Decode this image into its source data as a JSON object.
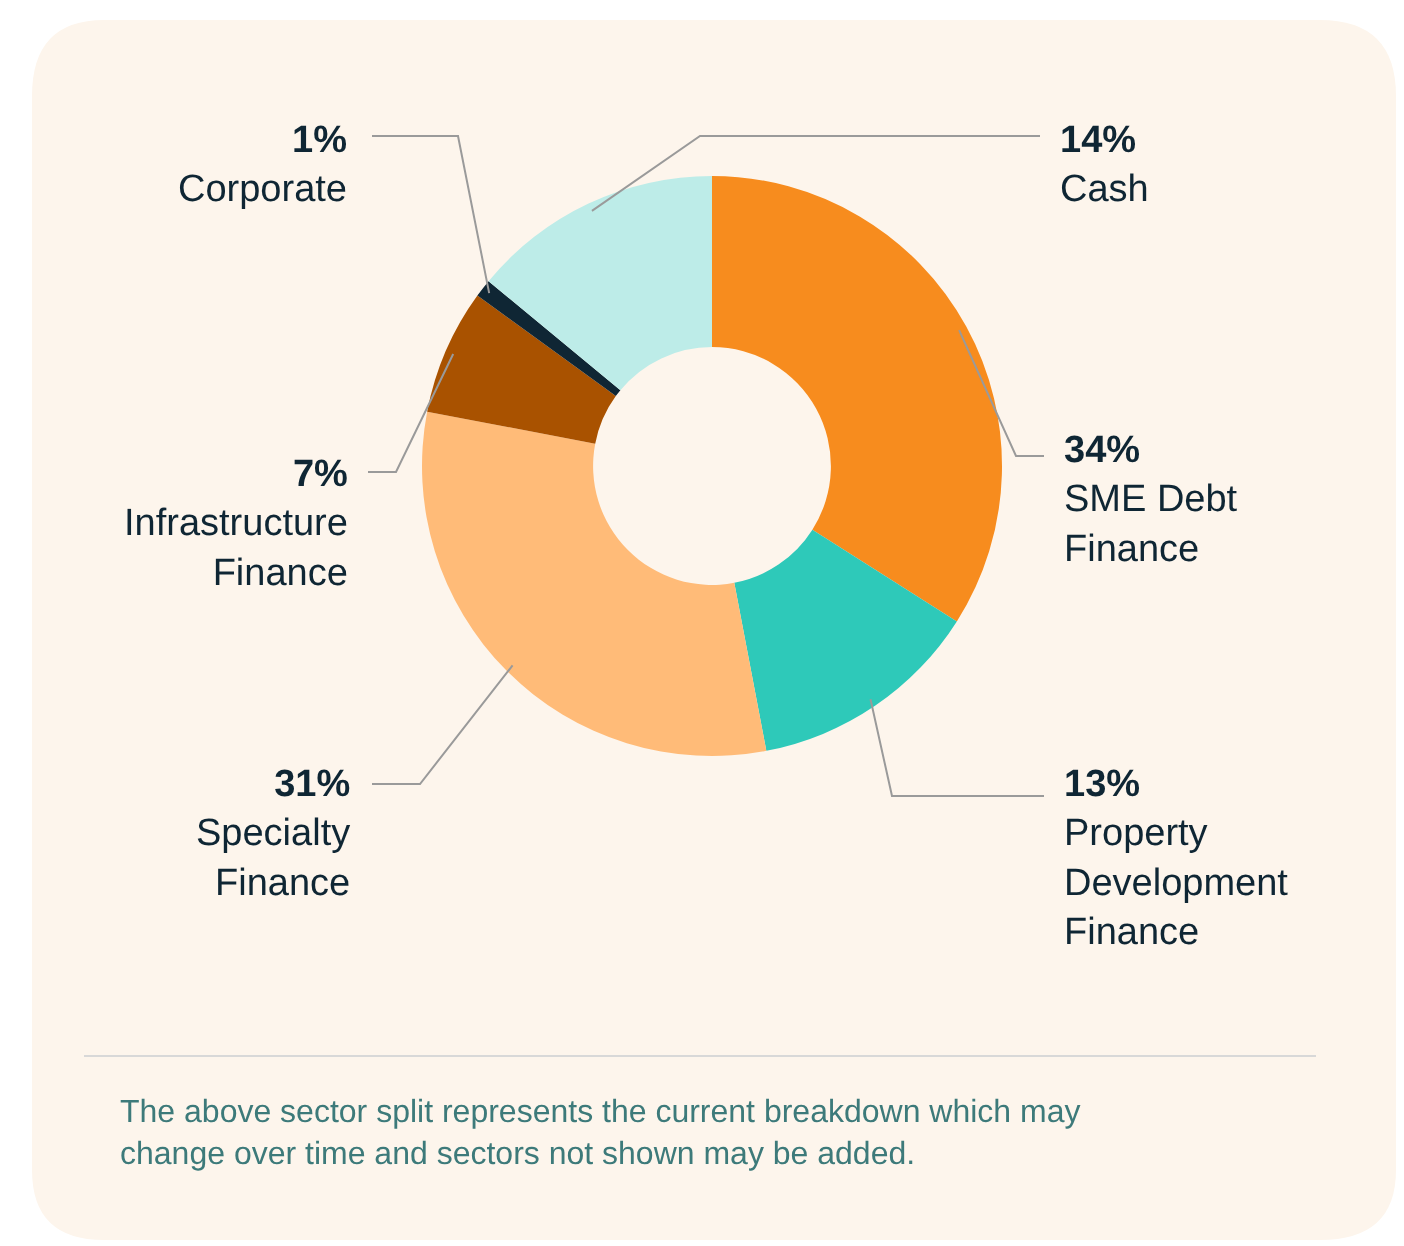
{
  "chart_data": {
    "type": "donut",
    "categories": [
      "SME Debt Finance",
      "Property Development Finance",
      "Specialty Finance",
      "Infrastructure Finance",
      "Corporate",
      "Cash"
    ],
    "values": [
      34,
      13,
      31,
      7,
      1,
      14
    ],
    "value_labels": [
      "34%",
      "13%",
      "31%",
      "7%",
      "1%",
      "14%"
    ],
    "colors": [
      "#f78c1e",
      "#2ec9b9",
      "#ffbb78",
      "#a95200",
      "#0f2634",
      "#bdece8"
    ],
    "legend": false,
    "annotations": [
      "The above sector split represents the current breakdown which may change over time and sectors not shown may be added."
    ]
  }
}
